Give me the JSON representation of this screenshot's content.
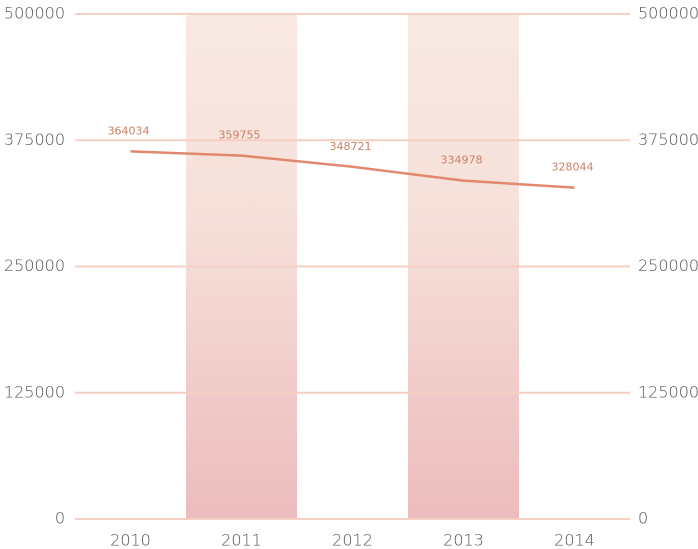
{
  "chart_data": {
    "type": "line",
    "categories": [
      "2010",
      "2011",
      "2012",
      "2013",
      "2014"
    ],
    "values": [
      364034,
      359755,
      348721,
      334978,
      328044
    ],
    "color": "#e0896f",
    "ylim": [
      0,
      500000
    ],
    "yticks": [
      0,
      125000,
      250000,
      375000,
      500000
    ],
    "grid": true
  }
}
